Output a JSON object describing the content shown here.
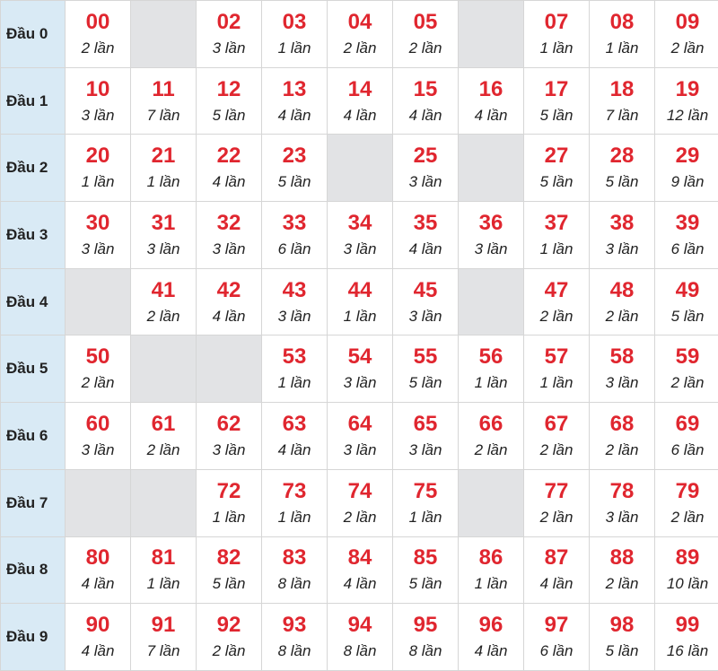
{
  "unit": "lần",
  "colors": {
    "number": "#e0262f",
    "header_bg": "#d9eaf5",
    "empty_bg": "#e2e3e5"
  },
  "rows": [
    {
      "label": "Đầu 0",
      "cells": [
        {
          "num": "00",
          "count": "2 lần"
        },
        null,
        {
          "num": "02",
          "count": "3 lần"
        },
        {
          "num": "03",
          "count": "1 lần"
        },
        {
          "num": "04",
          "count": "2 lần"
        },
        {
          "num": "05",
          "count": "2 lần"
        },
        null,
        {
          "num": "07",
          "count": "1 lần"
        },
        {
          "num": "08",
          "count": "1 lần"
        },
        {
          "num": "09",
          "count": "2 lần"
        }
      ]
    },
    {
      "label": "Đầu 1",
      "cells": [
        {
          "num": "10",
          "count": "3 lần"
        },
        {
          "num": "11",
          "count": "7 lần"
        },
        {
          "num": "12",
          "count": "5 lần"
        },
        {
          "num": "13",
          "count": "4 lần"
        },
        {
          "num": "14",
          "count": "4 lần"
        },
        {
          "num": "15",
          "count": "4 lần"
        },
        {
          "num": "16",
          "count": "4 lần"
        },
        {
          "num": "17",
          "count": "5 lần"
        },
        {
          "num": "18",
          "count": "7 lần"
        },
        {
          "num": "19",
          "count": "12 lần"
        }
      ]
    },
    {
      "label": "Đầu 2",
      "cells": [
        {
          "num": "20",
          "count": "1 lần"
        },
        {
          "num": "21",
          "count": "1 lần"
        },
        {
          "num": "22",
          "count": "4 lần"
        },
        {
          "num": "23",
          "count": "5 lần"
        },
        null,
        {
          "num": "25",
          "count": "3 lần"
        },
        null,
        {
          "num": "27",
          "count": "5 lần"
        },
        {
          "num": "28",
          "count": "5 lần"
        },
        {
          "num": "29",
          "count": "9 lần"
        }
      ]
    },
    {
      "label": "Đầu 3",
      "cells": [
        {
          "num": "30",
          "count": "3 lần"
        },
        {
          "num": "31",
          "count": "3 lần"
        },
        {
          "num": "32",
          "count": "3 lần"
        },
        {
          "num": "33",
          "count": "6 lần"
        },
        {
          "num": "34",
          "count": "3 lần"
        },
        {
          "num": "35",
          "count": "4 lần"
        },
        {
          "num": "36",
          "count": "3 lần"
        },
        {
          "num": "37",
          "count": "1 lần"
        },
        {
          "num": "38",
          "count": "3 lần"
        },
        {
          "num": "39",
          "count": "6 lần"
        }
      ]
    },
    {
      "label": "Đầu 4",
      "cells": [
        null,
        {
          "num": "41",
          "count": "2 lần"
        },
        {
          "num": "42",
          "count": "4 lần"
        },
        {
          "num": "43",
          "count": "3 lần"
        },
        {
          "num": "44",
          "count": "1 lần"
        },
        {
          "num": "45",
          "count": "3 lần"
        },
        null,
        {
          "num": "47",
          "count": "2 lần"
        },
        {
          "num": "48",
          "count": "2 lần"
        },
        {
          "num": "49",
          "count": "5 lần"
        }
      ]
    },
    {
      "label": "Đầu 5",
      "cells": [
        {
          "num": "50",
          "count": "2 lần"
        },
        null,
        null,
        {
          "num": "53",
          "count": "1 lần"
        },
        {
          "num": "54",
          "count": "3 lần"
        },
        {
          "num": "55",
          "count": "5 lần"
        },
        {
          "num": "56",
          "count": "1 lần"
        },
        {
          "num": "57",
          "count": "1 lần"
        },
        {
          "num": "58",
          "count": "3 lần"
        },
        {
          "num": "59",
          "count": "2 lần"
        }
      ]
    },
    {
      "label": "Đầu 6",
      "cells": [
        {
          "num": "60",
          "count": "3 lần"
        },
        {
          "num": "61",
          "count": "2 lần"
        },
        {
          "num": "62",
          "count": "3 lần"
        },
        {
          "num": "63",
          "count": "4 lần"
        },
        {
          "num": "64",
          "count": "3 lần"
        },
        {
          "num": "65",
          "count": "3 lần"
        },
        {
          "num": "66",
          "count": "2 lần"
        },
        {
          "num": "67",
          "count": "2 lần"
        },
        {
          "num": "68",
          "count": "2 lần"
        },
        {
          "num": "69",
          "count": "6 lần"
        }
      ]
    },
    {
      "label": "Đầu 7",
      "cells": [
        null,
        null,
        {
          "num": "72",
          "count": "1 lần"
        },
        {
          "num": "73",
          "count": "1 lần"
        },
        {
          "num": "74",
          "count": "2 lần"
        },
        {
          "num": "75",
          "count": "1 lần"
        },
        null,
        {
          "num": "77",
          "count": "2 lần"
        },
        {
          "num": "78",
          "count": "3 lần"
        },
        {
          "num": "79",
          "count": "2 lần"
        }
      ]
    },
    {
      "label": "Đầu 8",
      "cells": [
        {
          "num": "80",
          "count": "4 lần"
        },
        {
          "num": "81",
          "count": "1 lần"
        },
        {
          "num": "82",
          "count": "5 lần"
        },
        {
          "num": "83",
          "count": "8 lần"
        },
        {
          "num": "84",
          "count": "4 lần"
        },
        {
          "num": "85",
          "count": "5 lần"
        },
        {
          "num": "86",
          "count": "1 lần"
        },
        {
          "num": "87",
          "count": "4 lần"
        },
        {
          "num": "88",
          "count": "2 lần"
        },
        {
          "num": "89",
          "count": "10 lần"
        }
      ]
    },
    {
      "label": "Đầu 9",
      "cells": [
        {
          "num": "90",
          "count": "4 lần"
        },
        {
          "num": "91",
          "count": "7 lần"
        },
        {
          "num": "92",
          "count": "2 lần"
        },
        {
          "num": "93",
          "count": "8 lần"
        },
        {
          "num": "94",
          "count": "8 lần"
        },
        {
          "num": "95",
          "count": "8 lần"
        },
        {
          "num": "96",
          "count": "4 lần"
        },
        {
          "num": "97",
          "count": "6 lần"
        },
        {
          "num": "98",
          "count": "5 lần"
        },
        {
          "num": "99",
          "count": "16 lần"
        }
      ]
    }
  ]
}
